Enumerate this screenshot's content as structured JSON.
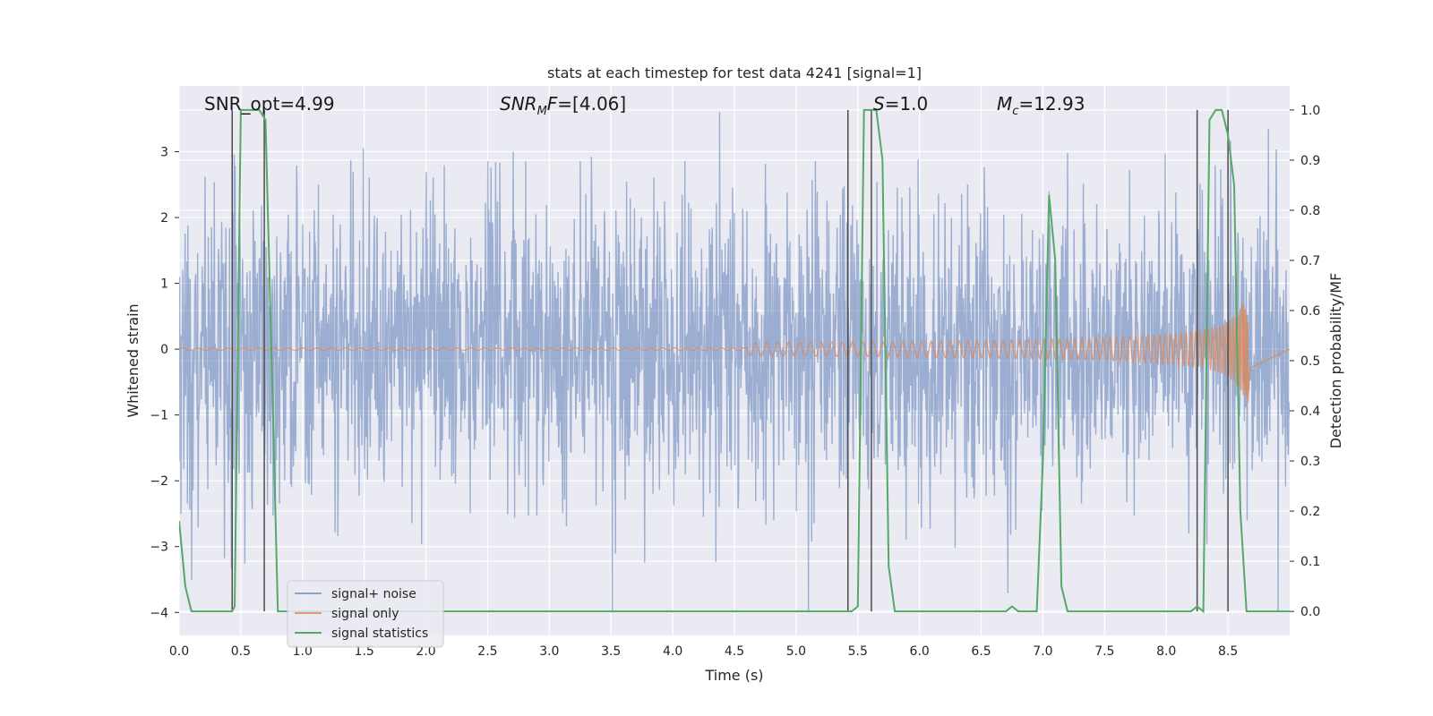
{
  "chart_data": {
    "type": "line",
    "title": "stats at each timestep for test data 4241 [signal=1]",
    "xlabel": "Time (s)",
    "ylabel": "Whitened strain",
    "y2label": "Detection probability/MF",
    "xlim": [
      0.0,
      9.0
    ],
    "ylim": [
      -4.35,
      4.0
    ],
    "y2lim": [
      -0.048,
      1.048
    ],
    "x_ticks": [
      "0.0",
      "0.5",
      "1.0",
      "1.5",
      "2.0",
      "2.5",
      "3.0",
      "3.5",
      "4.0",
      "4.5",
      "5.0",
      "5.5",
      "6.0",
      "6.5",
      "7.0",
      "7.5",
      "8.0",
      "8.5"
    ],
    "y_ticks": [
      "3",
      "2",
      "1",
      "0",
      "−1",
      "−2",
      "−3",
      "−4"
    ],
    "y2_ticks": [
      "1.0",
      "0.9",
      "0.8",
      "0.7",
      "0.6",
      "0.5",
      "0.4",
      "0.3",
      "0.2",
      "0.1",
      "0.0"
    ],
    "grid": true,
    "legend_position": "lower-left",
    "annotations": {
      "snr_opt": "SNR_opt=4.99",
      "snr_mf_name": "SNR",
      "snr_mf_sub": "M",
      "snr_mf_rest": "F",
      "snr_mf_value": "=[4.06]",
      "s_name": "S",
      "s_value": "=1.0",
      "mc_name": "M",
      "mc_sub": "c",
      "mc_value": "=12.93"
    },
    "series": [
      {
        "name": "signal+ noise",
        "color": "#4c72b0",
        "axis": "left",
        "kind": "noise",
        "typical_peak": 1.8,
        "max_peak": 3.6,
        "min_trough": -4.0,
        "x_range": [
          0.0,
          9.0
        ]
      },
      {
        "name": "signal only",
        "color": "#dd8452",
        "axis": "left",
        "kind": "chirp",
        "x_range": [
          0.0,
          8.68
        ],
        "peak_amplitude": 0.72,
        "merger_time": 8.66
      },
      {
        "name": "signal statistics",
        "color": "#55a868",
        "axis": "right",
        "kind": "line",
        "x": [
          0.0,
          0.05,
          0.1,
          0.15,
          0.2,
          0.25,
          0.3,
          0.35,
          0.4,
          0.43,
          0.45,
          0.5,
          0.55,
          0.6,
          0.65,
          0.7,
          0.75,
          0.8,
          0.85,
          0.9,
          1.0,
          1.5,
          2.0,
          2.5,
          3.0,
          3.5,
          4.0,
          4.5,
          5.0,
          5.3,
          5.4,
          5.45,
          5.5,
          5.55,
          5.6,
          5.65,
          5.7,
          5.75,
          5.8,
          5.9,
          6.0,
          6.5,
          6.65,
          6.7,
          6.75,
          6.8,
          6.9,
          6.95,
          7.0,
          7.05,
          7.1,
          7.15,
          7.2,
          7.25,
          7.3,
          7.5,
          8.0,
          8.2,
          8.25,
          8.3,
          8.35,
          8.4,
          8.45,
          8.5,
          8.55,
          8.6,
          8.65,
          8.7,
          8.8,
          9.0
        ],
        "y": [
          0.18,
          0.05,
          0.0,
          0.0,
          0.0,
          0.0,
          0.0,
          0.0,
          0.0,
          0.0,
          0.01,
          1.0,
          1.0,
          1.0,
          1.0,
          0.98,
          0.5,
          0.0,
          0.0,
          0.0,
          0.0,
          0.0,
          0.0,
          0.0,
          0.0,
          0.0,
          0.0,
          0.0,
          0.0,
          0.0,
          0.0,
          0.0,
          0.01,
          1.0,
          1.0,
          1.0,
          0.9,
          0.09,
          0.0,
          0.0,
          0.0,
          0.0,
          0.0,
          0.0,
          0.01,
          0.0,
          0.0,
          0.0,
          0.3,
          0.83,
          0.7,
          0.05,
          0.0,
          0.0,
          0.0,
          0.0,
          0.0,
          0.0,
          0.01,
          0.0,
          0.98,
          1.0,
          1.0,
          0.95,
          0.85,
          0.2,
          0.0,
          0.0,
          0.0,
          0.0
        ]
      }
    ],
    "vertical_markers": [
      0.43,
      0.69,
      5.42,
      5.61,
      8.25,
      8.5
    ]
  }
}
